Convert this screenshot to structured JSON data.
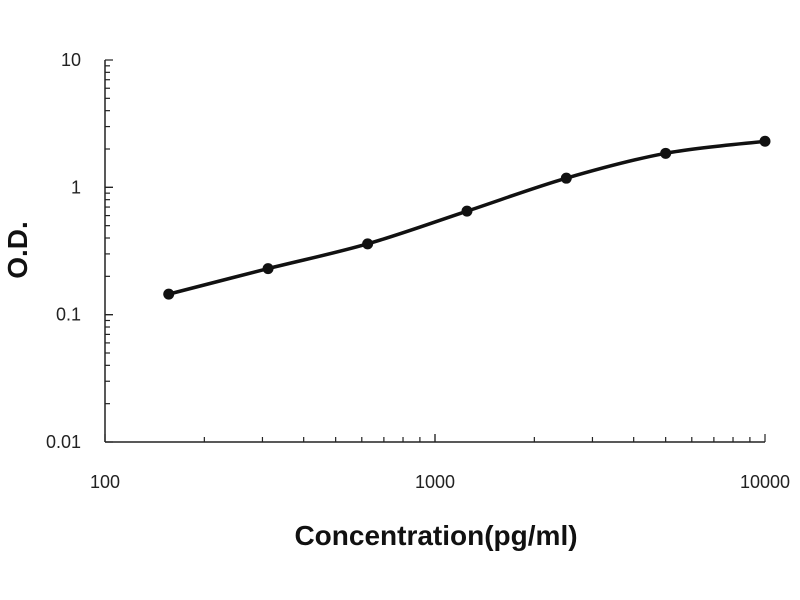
{
  "chart_data": {
    "type": "line",
    "title": "",
    "xlabel": "Concentration(pg/ml)",
    "ylabel": "O.D.",
    "x_scale": "log",
    "y_scale": "log",
    "xlim": [
      100,
      10000
    ],
    "ylim": [
      0.01,
      10
    ],
    "x_ticks": [
      {
        "value": 100,
        "label": "100"
      },
      {
        "value": 1000,
        "label": "1000"
      },
      {
        "value": 10000,
        "label": "10000"
      }
    ],
    "y_ticks": [
      {
        "value": 10,
        "label": "10"
      },
      {
        "value": 1,
        "label": "1"
      },
      {
        "value": 0.1,
        "label": "0.1"
      },
      {
        "value": 0.01,
        "label": "0.01"
      }
    ],
    "grid": false,
    "legend": "none",
    "series": [
      {
        "x": [
          156,
          312,
          625,
          1250,
          2500,
          5000,
          10000
        ],
        "y": [
          0.145,
          0.23,
          0.36,
          0.65,
          1.18,
          1.85,
          2.3
        ],
        "color": "#111111",
        "marker": "circle"
      }
    ]
  }
}
